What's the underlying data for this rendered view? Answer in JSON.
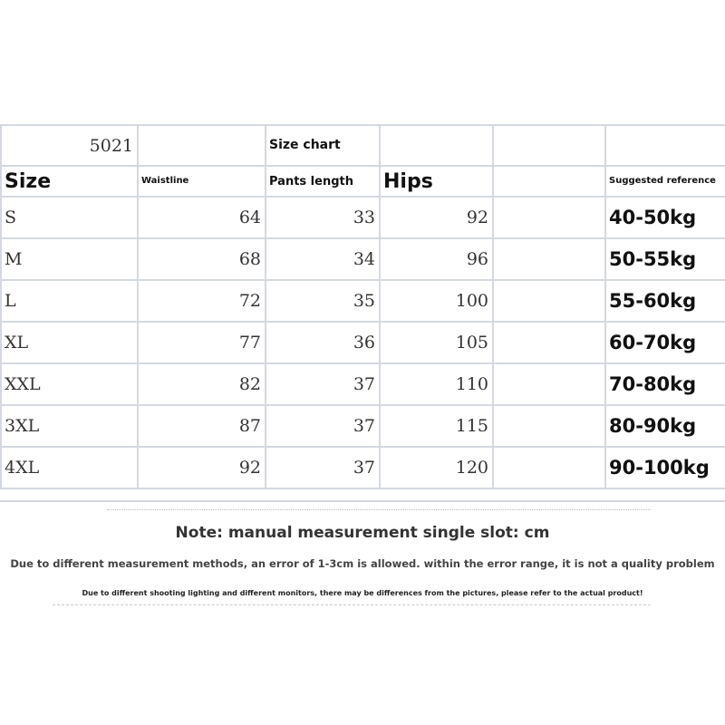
{
  "table": {
    "code": "5021",
    "title": "Size chart",
    "headers": {
      "size": "Size",
      "waistline": "Waistline",
      "pants_length": "Pants length",
      "hips": "Hips",
      "suggested": "Suggested reference"
    },
    "rows": [
      {
        "size": "S",
        "waist": "64",
        "length": "33",
        "hips": "92",
        "weight": "40-50kg"
      },
      {
        "size": "M",
        "waist": "68",
        "length": "34",
        "hips": "96",
        "weight": "50-55kg"
      },
      {
        "size": "L",
        "waist": "72",
        "length": "35",
        "hips": "100",
        "weight": "55-60kg"
      },
      {
        "size": "XL",
        "waist": "77",
        "length": "36",
        "hips": "105",
        "weight": "60-70kg"
      },
      {
        "size": "XXL",
        "waist": "82",
        "length": "37",
        "hips": "110",
        "weight": "70-80kg"
      },
      {
        "size": "3XL",
        "waist": "87",
        "length": "37",
        "hips": "115",
        "weight": "80-90kg"
      },
      {
        "size": "4XL",
        "waist": "92",
        "length": "37",
        "hips": "120",
        "weight": "90-100kg"
      }
    ]
  },
  "notes": {
    "unit_note": "Note: manual measurement single slot: cm",
    "error_note": "Due to different measurement methods, an error of 1-3cm is allowed. within the error range, it is not a quality problem",
    "color_note": "Due to different shooting lighting and different monitors, there may be differences from the pictures, please refer to the actual product!"
  }
}
